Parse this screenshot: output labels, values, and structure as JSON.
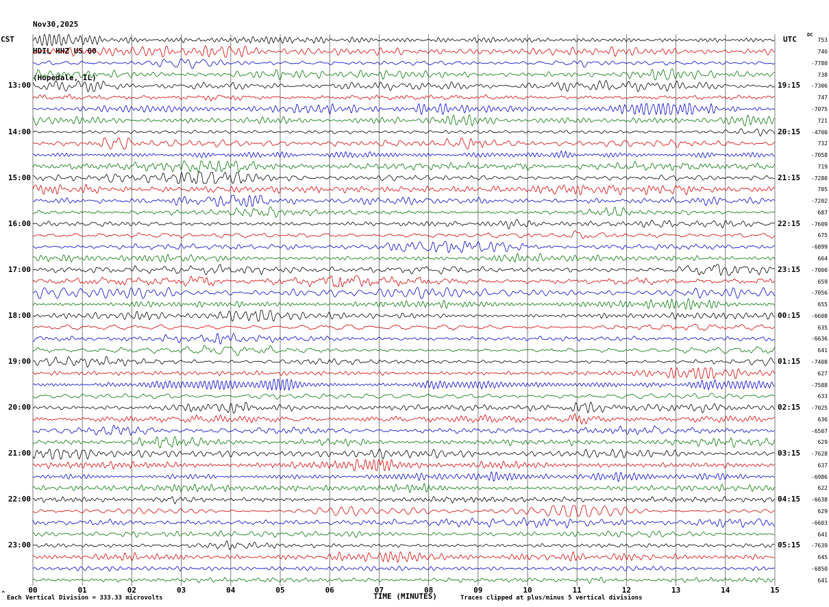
{
  "header": {
    "date": "Nov30,2025",
    "station": "HDIL HHZ US 00",
    "location": "(Hopedale, IL)"
  },
  "axis": {
    "left_tz": "CST",
    "right_tz": "UTC",
    "dc_label": "DC",
    "x_label": "TIME (MINUTES)",
    "minute_labels": [
      "00",
      "01",
      "02",
      "03",
      "04",
      "05",
      "06",
      "07",
      "08",
      "09",
      "10",
      "11",
      "12",
      "13",
      "14",
      "15"
    ],
    "left_times": [
      "13:00",
      "14:00",
      "15:00",
      "16:00",
      "17:00",
      "18:00",
      "19:00",
      "20:00",
      "21:00",
      "22:00",
      "23:00"
    ],
    "right_times": [
      "19:15",
      "20:15",
      "21:15",
      "22:15",
      "23:15",
      "00:15",
      "01:15",
      "02:15",
      "03:15",
      "04:15",
      "05:15"
    ],
    "label_row_start": 4,
    "label_row_step": 4,
    "dc_values": [
      "753",
      "746",
      "-7780",
      "738",
      "-7306",
      "747",
      "-7075",
      "721",
      "-4700",
      "732",
      "-7058",
      "719",
      "-7280",
      "705",
      "-7202",
      "687",
      "-7609",
      "675",
      "-6899",
      "664",
      "-7000",
      "659",
      "-7056",
      "655",
      "-6608",
      "635",
      "-6636",
      "641",
      "-7408",
      "627",
      "-7588",
      "633",
      "-7025",
      "636",
      "-6507",
      "629",
      "-7628",
      "637",
      "-6986",
      "622",
      "-6638",
      "629",
      "-6603",
      "641",
      "-7639",
      "645",
      "-6850",
      "641"
    ]
  },
  "footer": {
    "caret": "^",
    "scale_note": "Each Vertical Division =  333.33 microvolts",
    "clip_note": "Traces clipped at plus/minus 5 vertical divisions"
  },
  "traces": {
    "rows": 48,
    "colors_cycle": [
      "#000000",
      "#d40000",
      "#0000cc",
      "#007400"
    ],
    "grid_color": "#7a7a7a",
    "seed": 20251130
  },
  "chart_data": {
    "type": "line",
    "subtype": "seismogram-helicorder",
    "title": "HDIL HHZ US 00 (Hopedale, IL) Nov30,2025",
    "station": "HDIL HHZ US 00",
    "location": "Hopedale, IL",
    "date": "Nov30,2025",
    "xlabel": "TIME (MINUTES)",
    "x_range_minutes": [
      0,
      15
    ],
    "x_ticks": [
      "00",
      "01",
      "02",
      "03",
      "04",
      "05",
      "06",
      "07",
      "08",
      "09",
      "10",
      "11",
      "12",
      "13",
      "14",
      "15"
    ],
    "rows": 48,
    "row_interval_minutes": 15,
    "first_row_start_left_tz": "12:00 CST",
    "left_timezone": "CST",
    "right_timezone": "UTC",
    "left_hour_labels": [
      "13:00",
      "14:00",
      "15:00",
      "16:00",
      "17:00",
      "18:00",
      "19:00",
      "20:00",
      "21:00",
      "22:00",
      "23:00"
    ],
    "right_hour_labels": [
      "19:15",
      "20:15",
      "21:15",
      "22:15",
      "23:15",
      "00:15",
      "01:15",
      "02:15",
      "03:15",
      "04:15",
      "05:15"
    ],
    "dc_offsets_per_row": [
      "753",
      "746",
      "-7780",
      "738",
      "-7306",
      "747",
      "-7075",
      "721",
      "-4700",
      "732",
      "-7058",
      "719",
      "-7280",
      "705",
      "-7202",
      "687",
      "-7609",
      "675",
      "-6899",
      "664",
      "-7000",
      "659",
      "-7056",
      "655",
      "-6608",
      "635",
      "-6636",
      "641",
      "-7408",
      "627",
      "-7588",
      "633",
      "-7025",
      "636",
      "-6507",
      "629",
      "-7628",
      "637",
      "-6986",
      "622",
      "-6638",
      "629",
      "-6603",
      "641",
      "-7639",
      "645",
      "-6850",
      "641"
    ],
    "trace_color_cycle": [
      "black",
      "red",
      "blue",
      "green"
    ],
    "vertical_scale": "Each Vertical Division = 333.33 microvolts",
    "clipping": "Traces clipped at plus/minus 5 vertical divisions",
    "grid": "vertical gridlines at every minute",
    "waveform_note": "continuous background seismic noise; individual sample values not recoverable from image, rendered as band-limited pseudo-random noise"
  }
}
